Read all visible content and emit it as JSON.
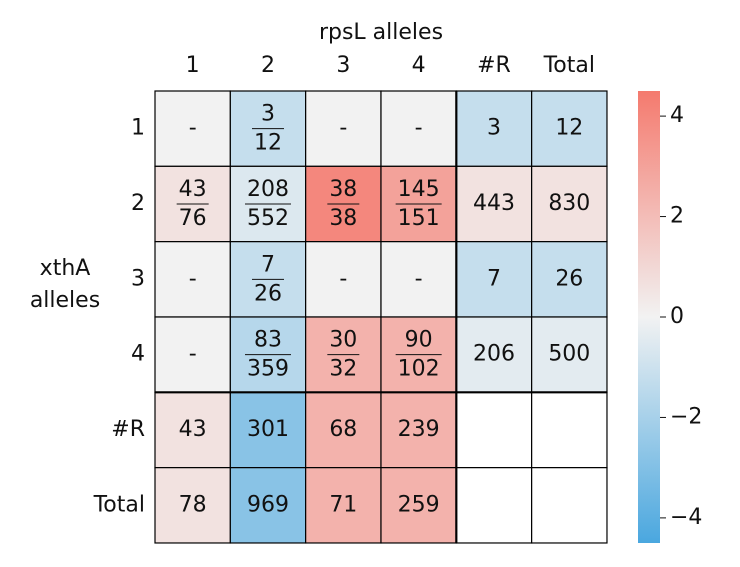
{
  "chart_data": {
    "type": "heatmap",
    "title": "rpsL alleles",
    "y_label": [
      "xthA",
      "alleles"
    ],
    "x_categories": [
      "1",
      "2",
      "3",
      "4",
      "#R",
      "Total"
    ],
    "y_categories": [
      "1",
      "2",
      "3",
      "4",
      "#R",
      "Total"
    ],
    "cells": [
      [
        "-",
        {
          "num": 3,
          "den": 12
        },
        "-",
        "-",
        3,
        12
      ],
      [
        {
          "num": 43,
          "den": 76
        },
        {
          "num": 208,
          "den": 552
        },
        {
          "num": 38,
          "den": 38
        },
        {
          "num": 145,
          "den": 151
        },
        443,
        830
      ],
      [
        "-",
        {
          "num": 7,
          "den": 26
        },
        "-",
        "-",
        7,
        26
      ],
      [
        "-",
        {
          "num": 83,
          "den": 359
        },
        {
          "num": 30,
          "den": 32
        },
        {
          "num": 90,
          "den": 102
        },
        206,
        500
      ],
      [
        43,
        301,
        68,
        239,
        null,
        null
      ],
      [
        78,
        969,
        71,
        259,
        null,
        null
      ]
    ],
    "z": [
      [
        0,
        -1.2,
        0,
        0,
        -1.2,
        -1.2
      ],
      [
        0.6,
        -0.6,
        4.0,
        3.0,
        0.6,
        0.6
      ],
      [
        0,
        -1.2,
        0,
        0,
        -1.2,
        -1.2
      ],
      [
        0,
        -1.6,
        2.4,
        2.4,
        -0.4,
        -0.4
      ],
      [
        0.6,
        -2.8,
        2.4,
        2.4,
        null,
        null
      ],
      [
        0.6,
        -2.8,
        2.4,
        2.4,
        null,
        null
      ]
    ],
    "zlim": [
      -4.5,
      4.5
    ],
    "zticks": [
      {
        "value": -4,
        "label": "−4"
      },
      {
        "value": -2,
        "label": "−2"
      },
      0,
      2,
      4
    ],
    "colors": {
      "low": "#4aa7df",
      "mid": "#f2f2f2",
      "high": "#f47a6e"
    }
  }
}
